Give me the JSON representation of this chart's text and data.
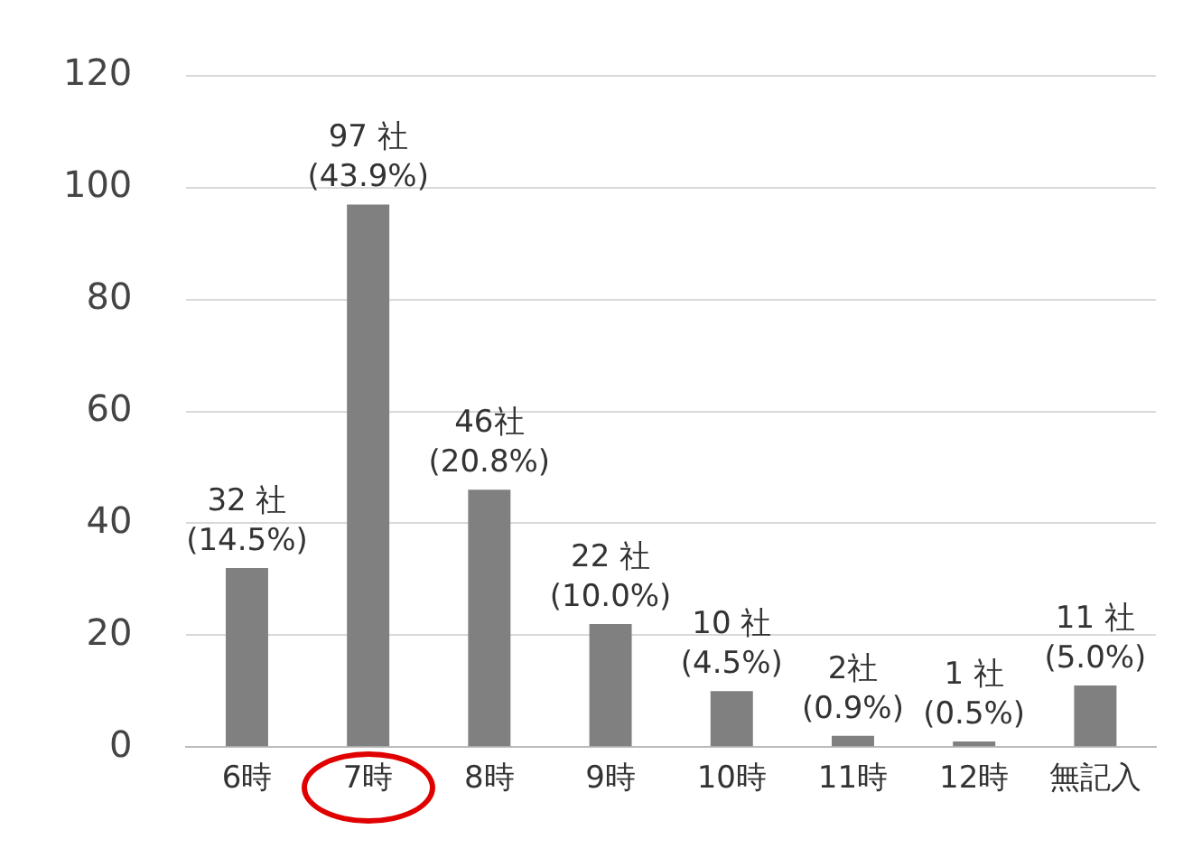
{
  "chart_data": {
    "type": "bar",
    "categories": [
      "6時",
      "7時",
      "8時",
      "9時",
      "10時",
      "11時",
      "12時",
      "無記入"
    ],
    "values": [
      32,
      97,
      46,
      22,
      10,
      2,
      1,
      11
    ],
    "color": "#808080",
    "value_labels": [
      "32 社\n(14.5%)",
      "97 社\n(43.9%)",
      "46社\n(20.8%)",
      "22 社\n(10.0%)",
      "10 社\n(4.5%)",
      "2社\n(0.9%)",
      "1 社\n(0.5%)",
      "11 社\n(5.0%)"
    ],
    "ylim": [
      0,
      120
    ],
    "yticks": [
      0,
      20,
      40,
      60,
      80,
      100,
      120
    ],
    "grid": "y",
    "legend": false
  }
}
